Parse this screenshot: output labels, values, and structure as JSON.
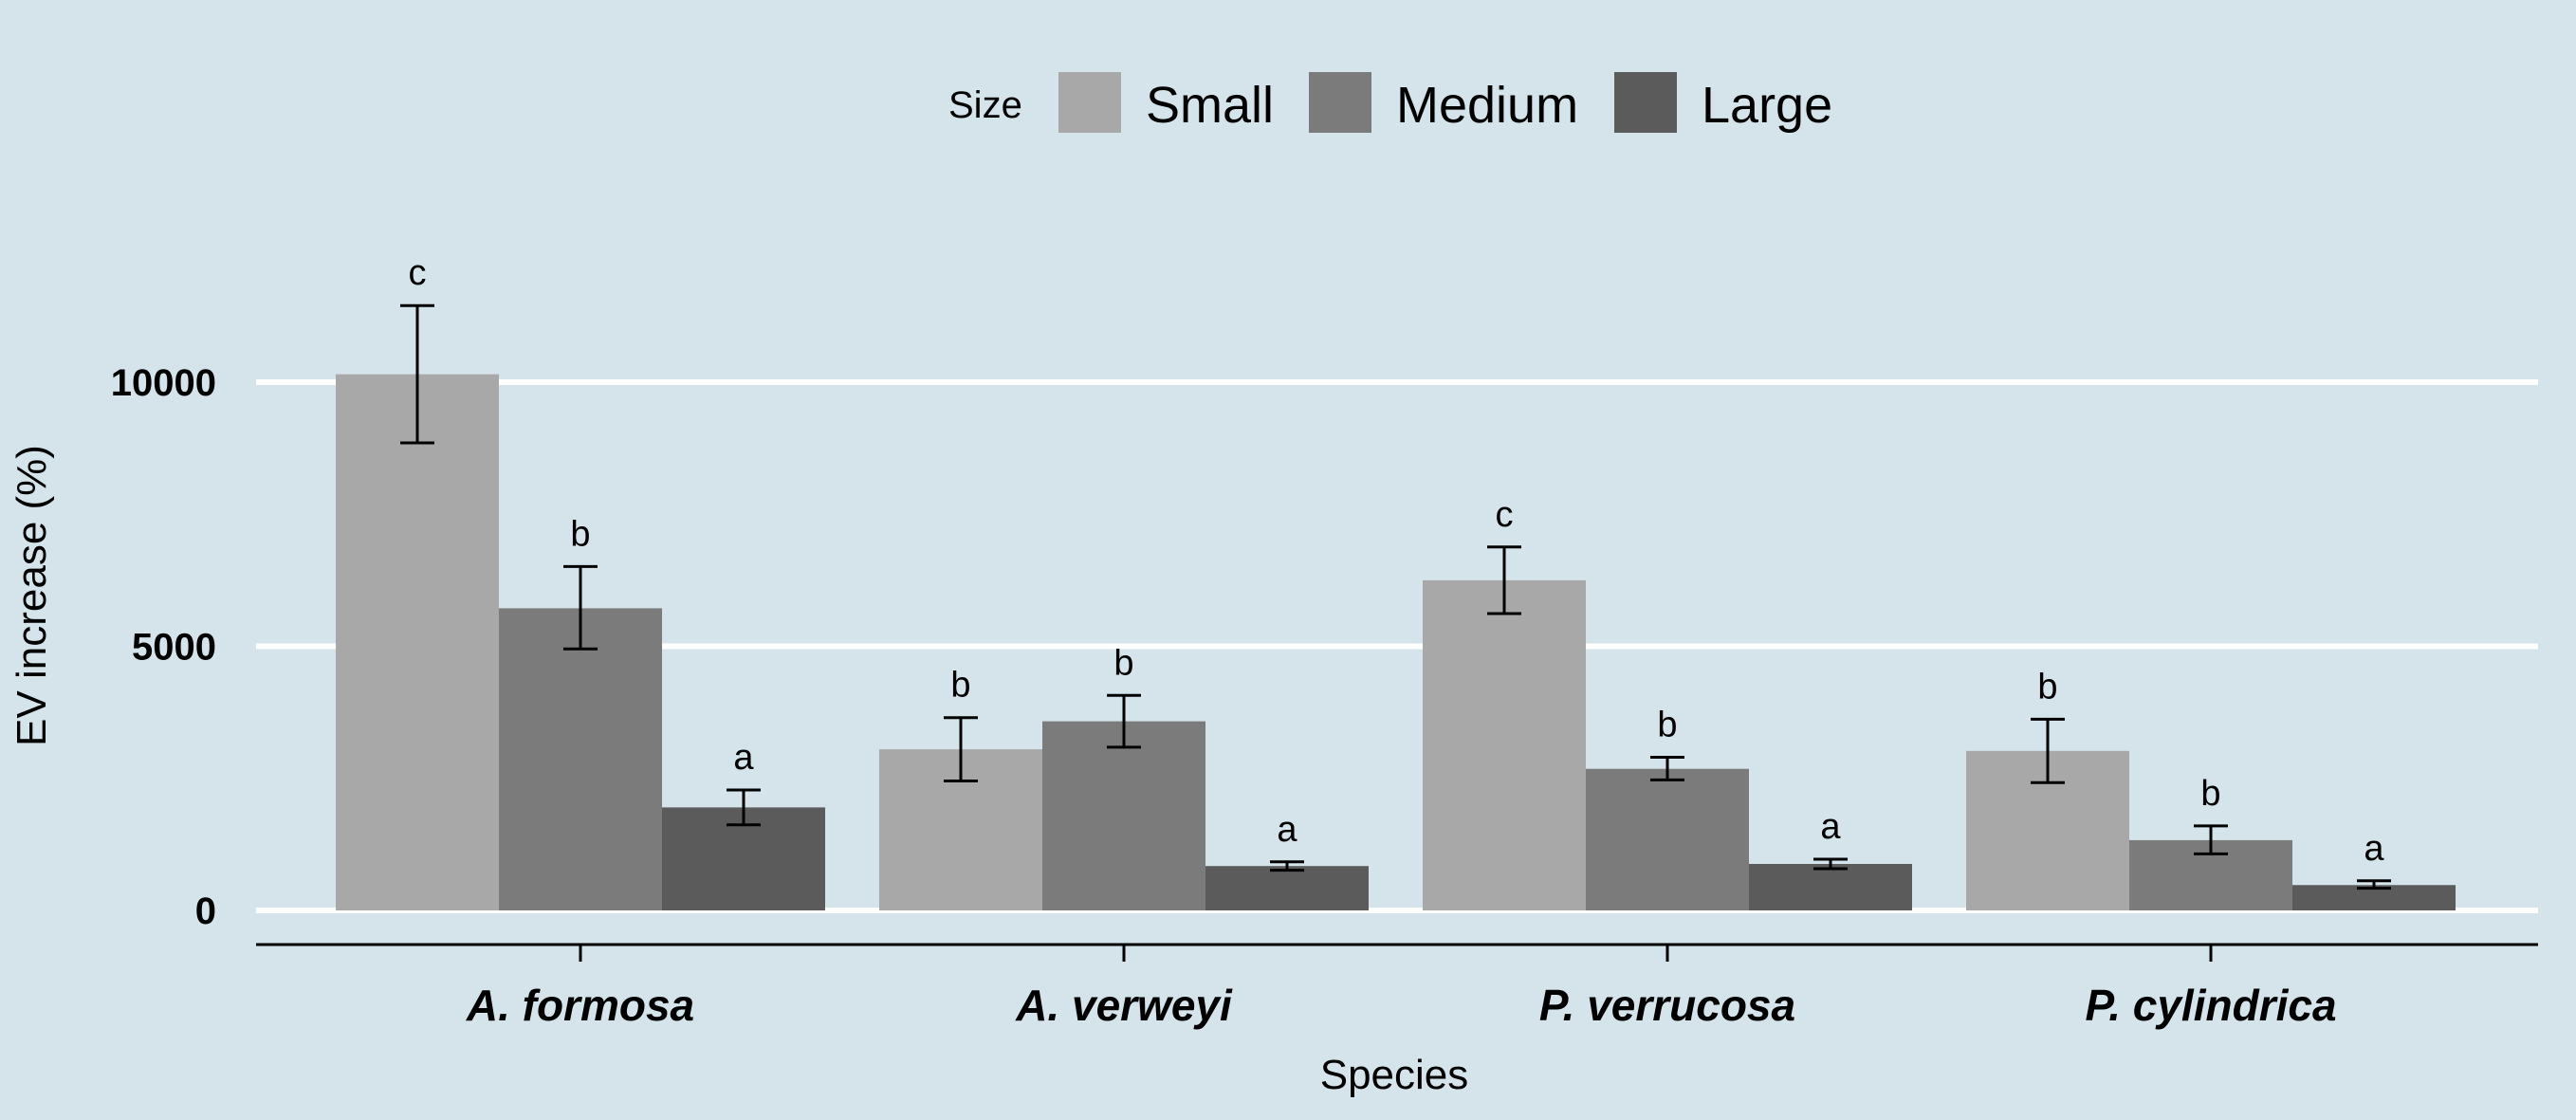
{
  "chart_data": {
    "type": "bar",
    "xlabel": "Species",
    "ylabel": "EV increase (%)",
    "categories": [
      "A. formosa",
      "A. verweyi",
      "P. verrucosa",
      "P. cylindrica"
    ],
    "yticks": [
      0,
      5000,
      10000
    ],
    "ytick_labels": [
      "0",
      "5000",
      "10000"
    ],
    "ylim": [
      -650,
      17200
    ],
    "grid": "horizontal major lines",
    "legend": {
      "title": "Size",
      "position": "top-center",
      "entries": [
        "Small",
        "Medium",
        "Large"
      ]
    },
    "series": [
      {
        "name": "Small",
        "color": "#a8a8a8",
        "values": [
          10150,
          3050,
          6250,
          3020
        ],
        "err_low": [
          8850,
          2450,
          5620,
          2420
        ],
        "err_high": [
          11450,
          3650,
          6880,
          3620
        ],
        "labels": [
          "c",
          "b",
          "c",
          "b"
        ]
      },
      {
        "name": "Medium",
        "color": "#7b7b7b",
        "values": [
          5720,
          3580,
          2680,
          1330
        ],
        "err_low": [
          4950,
          3090,
          2470,
          1070
        ],
        "err_high": [
          6510,
          4070,
          2900,
          1600
        ],
        "labels": [
          "b",
          "b",
          "b",
          "b"
        ]
      },
      {
        "name": "Large",
        "color": "#5b5b5b",
        "values": [
          1950,
          840,
          880,
          480
        ],
        "err_low": [
          1620,
          760,
          790,
          420
        ],
        "err_high": [
          2280,
          920,
          970,
          560
        ],
        "labels": [
          "a",
          "a",
          "a",
          "a"
        ]
      }
    ]
  }
}
